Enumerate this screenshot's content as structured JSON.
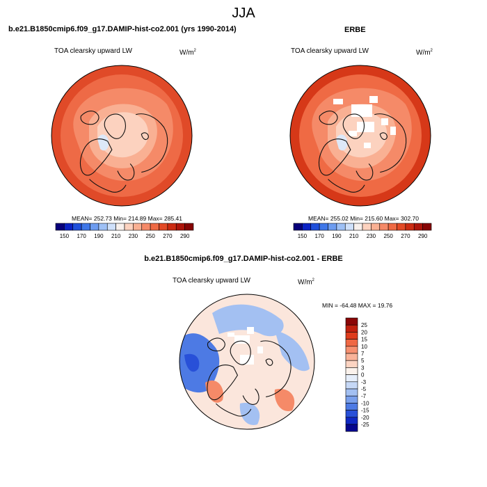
{
  "page_title": "JJA",
  "panels": [
    {
      "title": "b.e21.B1850cmip6.f09_g17.DAMIP-hist-co2.001 (yrs 1990-2014)",
      "variable": "TOA clearsky upward LW",
      "units": "W/m",
      "units_exp": "2",
      "stats": "MEAN= 252.73  Min= 214.89  Max= 285.41"
    },
    {
      "title": "ERBE",
      "variable": "TOA clearsky upward LW",
      "units": "W/m",
      "units_exp": "2",
      "stats": "MEAN= 255.02  Min= 215.60  Max= 302.70"
    }
  ],
  "difference": {
    "title": "b.e21.B1850cmip6.f09_g17.DAMIP-hist-co2.001 - ERBE",
    "variable": "TOA clearsky upward LW",
    "units": "W/m",
    "units_exp": "2",
    "stats": "MIN = -64.48 MAX =  19.76"
  },
  "abs_colorbar": {
    "labels": [
      "150",
      "170",
      "190",
      "210",
      "230",
      "250",
      "270",
      "290"
    ],
    "colors": [
      "#08007a",
      "#0b22c4",
      "#1f4fdb",
      "#3f77e8",
      "#6d9cf0",
      "#9ec0f5",
      "#cfe0fa",
      "#f8f0ec",
      "#fcd2bf",
      "#f9b093",
      "#f58a68",
      "#ef6a44",
      "#e34a26",
      "#cc2b12",
      "#ad140a",
      "#860404"
    ]
  },
  "diff_colorbar": {
    "labels": [
      "25",
      "20",
      "15",
      "10",
      "7",
      "5",
      "3",
      "0",
      "-3",
      "-5",
      "-7",
      "-10",
      "-15",
      "-20",
      "-25"
    ],
    "colors": [
      "#8a0606",
      "#c0200e",
      "#de3c1c",
      "#ef6844",
      "#f69070",
      "#f9b399",
      "#fcd4c2",
      "#fbf2ec",
      "#e6eefa",
      "#c6d8f6",
      "#a3c0f2",
      "#7aa0ec",
      "#4d7ae4",
      "#2850d8",
      "#0f28c4",
      "#05068e"
    ]
  },
  "map_colors": {
    "model_base": "#ee6a46",
    "model_mid": "#f58a68",
    "model_light": "#f9b093",
    "model_pale": "#fcd2bf",
    "model_ice": "#dde8f8",
    "model_edge": "#e04a28",
    "erbe_base": "#ef6a44",
    "erbe_edge": "#d63818",
    "diff_base": "#fbe6dc",
    "diff_blue": "#4d7ae4",
    "diff_lightblue": "#a3c0f2",
    "diff_red": "#f58a68",
    "diff_deep": "#2850d8",
    "coast": "#111111"
  }
}
